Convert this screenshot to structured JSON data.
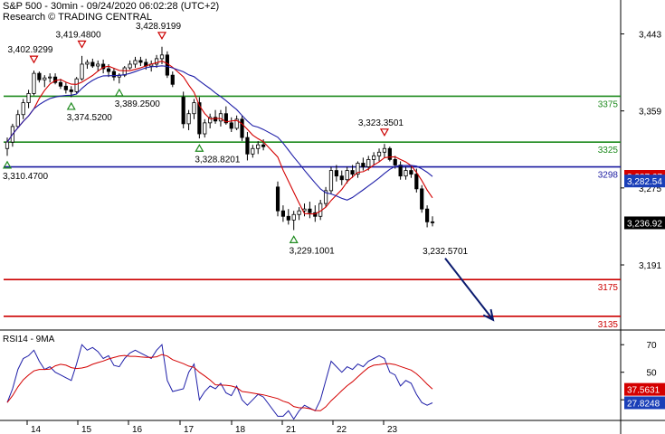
{
  "header": {
    "line1": "S&P 500 - 30min - 09/24/2020 06:02:28 (UTC+2)",
    "line2": "Research © TRADING CENTRAL"
  },
  "colors": {
    "support": "#1e8a1e",
    "pivot": "#1a1aa0",
    "resistance_low": "#cc0000",
    "ma_red": "#d40000",
    "ma_blue": "#1e1ea8",
    "candle": "#000000",
    "arrow": "#0a1a6e",
    "tag_dark": "#000000",
    "tag_blue": "#1a3fb8",
    "tag_red": "#d40000"
  },
  "chart_data": [
    {
      "type": "candlestick",
      "title": "S&P 500 - 30min",
      "y_ticks": [
        "3,443",
        "3,359",
        "3,275",
        "3,191"
      ],
      "ylim": [
        3120,
        3480
      ],
      "x_ticks": [
        "14",
        "15",
        "16",
        "17",
        "18",
        "21",
        "22",
        "23"
      ],
      "levels": [
        {
          "value": 3375,
          "label": "3375",
          "color": "#1e8a1e"
        },
        {
          "value": 3325,
          "label": "3325",
          "color": "#1e8a1e"
        },
        {
          "value": 3298,
          "label": "3298",
          "color": "#1a1aa0"
        },
        {
          "value": 3175,
          "label": "3175",
          "color": "#cc0000"
        },
        {
          "value": 3135,
          "label": "3135",
          "color": "#cc0000"
        }
      ],
      "price_tags": [
        {
          "value": 3287.67,
          "label": "3,287.67",
          "kind": "red"
        },
        {
          "value": 3282.54,
          "label": "3,282.54",
          "kind": "blue"
        },
        {
          "value": 3236.92,
          "label": "3,236.92",
          "kind": "dark"
        }
      ],
      "annotations": [
        {
          "label": "3,402.9299",
          "index": 5,
          "value": 3402.93,
          "marker": "high"
        },
        {
          "label": "3,419.4800",
          "index": 14,
          "value": 3419.48,
          "marker": "high"
        },
        {
          "label": "3,428.9199",
          "index": 29,
          "value": 3428.92,
          "marker": "high"
        },
        {
          "label": "3,374.5200",
          "index": 12,
          "value": 3374.52,
          "marker": "low"
        },
        {
          "label": "3,389.2500",
          "index": 21,
          "value": 3389.25,
          "marker": "low"
        },
        {
          "label": "3,310.4700",
          "index": 0,
          "value": 3310.47,
          "marker": "low"
        },
        {
          "label": "3,328.8201",
          "index": 35,
          "value": 3328.82,
          "marker": "low"
        },
        {
          "label": "3,323.3501",
          "index": 68,
          "value": 3323.35,
          "marker": "high"
        },
        {
          "label": "3,229.1001",
          "index": 51,
          "value": 3229.1,
          "marker": "low"
        },
        {
          "label": "3,232.5701",
          "index": 76,
          "value": 3232.57,
          "marker": "none"
        }
      ],
      "forecast": {
        "from_index": 79,
        "from_value": 3218,
        "to_index": 88,
        "to_value": 3135
      },
      "candles": [
        [
          3318,
          3330,
          3310,
          3325
        ],
        [
          3325,
          3345,
          3320,
          3342
        ],
        [
          3342,
          3360,
          3340,
          3355
        ],
        [
          3355,
          3372,
          3350,
          3368
        ],
        [
          3368,
          3382,
          3362,
          3378
        ],
        [
          3378,
          3403,
          3376,
          3400
        ],
        [
          3400,
          3402,
          3390,
          3393
        ],
        [
          3393,
          3398,
          3385,
          3395
        ],
        [
          3395,
          3400,
          3390,
          3396
        ],
        [
          3396,
          3400,
          3388,
          3390
        ],
        [
          3390,
          3394,
          3383,
          3386
        ],
        [
          3386,
          3390,
          3378,
          3382
        ],
        [
          3382,
          3386,
          3374,
          3380
        ],
        [
          3380,
          3396,
          3378,
          3394
        ],
        [
          3394,
          3419,
          3392,
          3410
        ],
        [
          3410,
          3415,
          3405,
          3412
        ],
        [
          3412,
          3416,
          3406,
          3408
        ],
        [
          3408,
          3414,
          3402,
          3410
        ],
        [
          3410,
          3415,
          3400,
          3405
        ],
        [
          3405,
          3410,
          3396,
          3402
        ],
        [
          3402,
          3406,
          3392,
          3396
        ],
        [
          3396,
          3400,
          3389,
          3398
        ],
        [
          3398,
          3408,
          3396,
          3406
        ],
        [
          3406,
          3414,
          3404,
          3410
        ],
        [
          3410,
          3418,
          3406,
          3414
        ],
        [
          3414,
          3418,
          3408,
          3412
        ],
        [
          3412,
          3416,
          3404,
          3408
        ],
        [
          3408,
          3414,
          3402,
          3410
        ],
        [
          3410,
          3420,
          3406,
          3416
        ],
        [
          3416,
          3429,
          3410,
          3420
        ],
        [
          3420,
          3424,
          3395,
          3398
        ],
        [
          3398,
          3402,
          3385,
          3388
        ],
        [
          3374,
          3380,
          3340,
          3345
        ],
        [
          3345,
          3360,
          3338,
          3356
        ],
        [
          3356,
          3372,
          3350,
          3368
        ],
        [
          3368,
          3374,
          3329,
          3334
        ],
        [
          3334,
          3350,
          3330,
          3346
        ],
        [
          3346,
          3356,
          3340,
          3352
        ],
        [
          3352,
          3360,
          3345,
          3348
        ],
        [
          3348,
          3360,
          3342,
          3356
        ],
        [
          3356,
          3364,
          3344,
          3346
        ],
        [
          3346,
          3352,
          3336,
          3340
        ],
        [
          3340,
          3354,
          3338,
          3350
        ],
        [
          3350,
          3354,
          3326,
          3330
        ],
        [
          3330,
          3336,
          3305,
          3312
        ],
        [
          3312,
          3322,
          3308,
          3318
        ],
        [
          3318,
          3326,
          3312,
          3322
        ],
        [
          3322,
          3328,
          3316,
          3320
        ],
        [
          3276,
          3282,
          3244,
          3250
        ],
        [
          3250,
          3256,
          3238,
          3244
        ],
        [
          3244,
          3252,
          3235,
          3240
        ],
        [
          3240,
          3250,
          3229,
          3246
        ],
        [
          3246,
          3254,
          3240,
          3250
        ],
        [
          3250,
          3258,
          3244,
          3252
        ],
        [
          3252,
          3260,
          3242,
          3248
        ],
        [
          3248,
          3256,
          3238,
          3244
        ],
        [
          3244,
          3262,
          3240,
          3258
        ],
        [
          3258,
          3276,
          3254,
          3272
        ],
        [
          3272,
          3298,
          3268,
          3294
        ],
        [
          3294,
          3300,
          3282,
          3288
        ],
        [
          3288,
          3294,
          3278,
          3284
        ],
        [
          3284,
          3298,
          3280,
          3294
        ],
        [
          3294,
          3300,
          3286,
          3290
        ],
        [
          3290,
          3304,
          3286,
          3302
        ],
        [
          3302,
          3308,
          3294,
          3298
        ],
        [
          3298,
          3310,
          3294,
          3306
        ],
        [
          3306,
          3314,
          3300,
          3310
        ],
        [
          3310,
          3318,
          3304,
          3314
        ],
        [
          3314,
          3323,
          3308,
          3318
        ],
        [
          3318,
          3320,
          3304,
          3306
        ],
        [
          3306,
          3310,
          3296,
          3300
        ],
        [
          3300,
          3304,
          3284,
          3288
        ],
        [
          3288,
          3298,
          3284,
          3294
        ],
        [
          3294,
          3300,
          3286,
          3290
        ],
        [
          3290,
          3296,
          3270,
          3274
        ],
        [
          3274,
          3278,
          3248,
          3252
        ],
        [
          3252,
          3256,
          3232,
          3238
        ],
        [
          3238,
          3244,
          3233,
          3237
        ]
      ],
      "rsi": {
        "title": "RSI14 - 9MA",
        "y_ticks": [
          "70",
          "50",
          "30"
        ],
        "ylim": [
          15,
          80
        ],
        "tags": [
          {
            "value": 37.5631,
            "label": "37.5631",
            "kind": "red"
          },
          {
            "value": 27.8248,
            "label": "27.8248",
            "kind": "blue"
          }
        ],
        "values": [
          28,
          38,
          52,
          60,
          62,
          66,
          58,
          52,
          54,
          50,
          48,
          46,
          44,
          56,
          70,
          66,
          68,
          65,
          60,
          62,
          55,
          54,
          60,
          64,
          66,
          64,
          62,
          60,
          66,
          70,
          44,
          36,
          38,
          50,
          56,
          30,
          36,
          40,
          38,
          42,
          35,
          33,
          40,
          30,
          26,
          30,
          34,
          32,
          18,
          18,
          22,
          16,
          22,
          26,
          24,
          22,
          30,
          44,
          58,
          54,
          50,
          54,
          52,
          56,
          54,
          58,
          60,
          62,
          60,
          50,
          48,
          40,
          44,
          42,
          34,
          28,
          26,
          27.8
        ]
      }
    }
  ]
}
